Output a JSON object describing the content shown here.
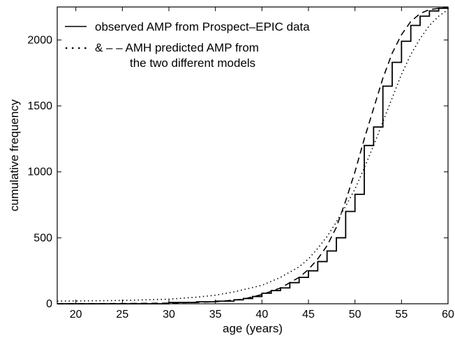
{
  "chart_data": {
    "type": "line",
    "title": "",
    "xlabel": "age (years)",
    "ylabel": "cumulative frequency",
    "xlim": [
      18,
      60
    ],
    "ylim": [
      0,
      2250
    ],
    "xticks": [
      20,
      25,
      30,
      35,
      40,
      45,
      50,
      55,
      60
    ],
    "yticks": [
      0,
      500,
      1000,
      1500,
      2000
    ],
    "grid": false,
    "legend_position": "top-left",
    "legend": {
      "line1": "observed AMP from Prospect–EPIC data",
      "line2": "& – – AMH predicted AMP from",
      "line3": "the two different models"
    },
    "series": [
      {
        "name": "observed AMP from Prospect–EPIC data",
        "style": "solid-step",
        "x": [
          18,
          30,
          33,
          35,
          37,
          38,
          39,
          40,
          41,
          42,
          43,
          44,
          45,
          46,
          47,
          48,
          49,
          50,
          51,
          52,
          53,
          54,
          55,
          56,
          57,
          58,
          59,
          60
        ],
        "y": [
          0,
          10,
          15,
          20,
          30,
          40,
          55,
          80,
          100,
          120,
          160,
          200,
          250,
          320,
          400,
          500,
          700,
          830,
          1200,
          1340,
          1650,
          1830,
          1990,
          2110,
          2180,
          2220,
          2240,
          2245
        ]
      },
      {
        "name": "AMH predicted AMP (dotted)",
        "style": "dotted",
        "x": [
          18,
          25,
          30,
          33,
          35,
          37,
          40,
          42,
          44,
          45,
          46,
          47,
          48,
          49,
          50,
          51,
          52,
          53,
          54,
          55,
          56,
          57,
          58,
          59,
          60
        ],
        "y": [
          20,
          25,
          35,
          50,
          65,
          90,
          140,
          200,
          280,
          340,
          420,
          510,
          620,
          740,
          870,
          1030,
          1200,
          1380,
          1560,
          1740,
          1890,
          2010,
          2110,
          2180,
          2230
        ]
      },
      {
        "name": "AMH predicted AMP (dashed)",
        "style": "dashed",
        "x": [
          18,
          25,
          30,
          35,
          38,
          40,
          42,
          44,
          45,
          46,
          47,
          48,
          49,
          50,
          51,
          52,
          53,
          54,
          55,
          56,
          57,
          58,
          59,
          60
        ],
        "y": [
          0,
          2,
          5,
          15,
          35,
          70,
          120,
          200,
          260,
          340,
          440,
          580,
          780,
          1000,
          1250,
          1480,
          1710,
          1900,
          2040,
          2140,
          2200,
          2230,
          2240,
          2245
        ]
      }
    ]
  }
}
